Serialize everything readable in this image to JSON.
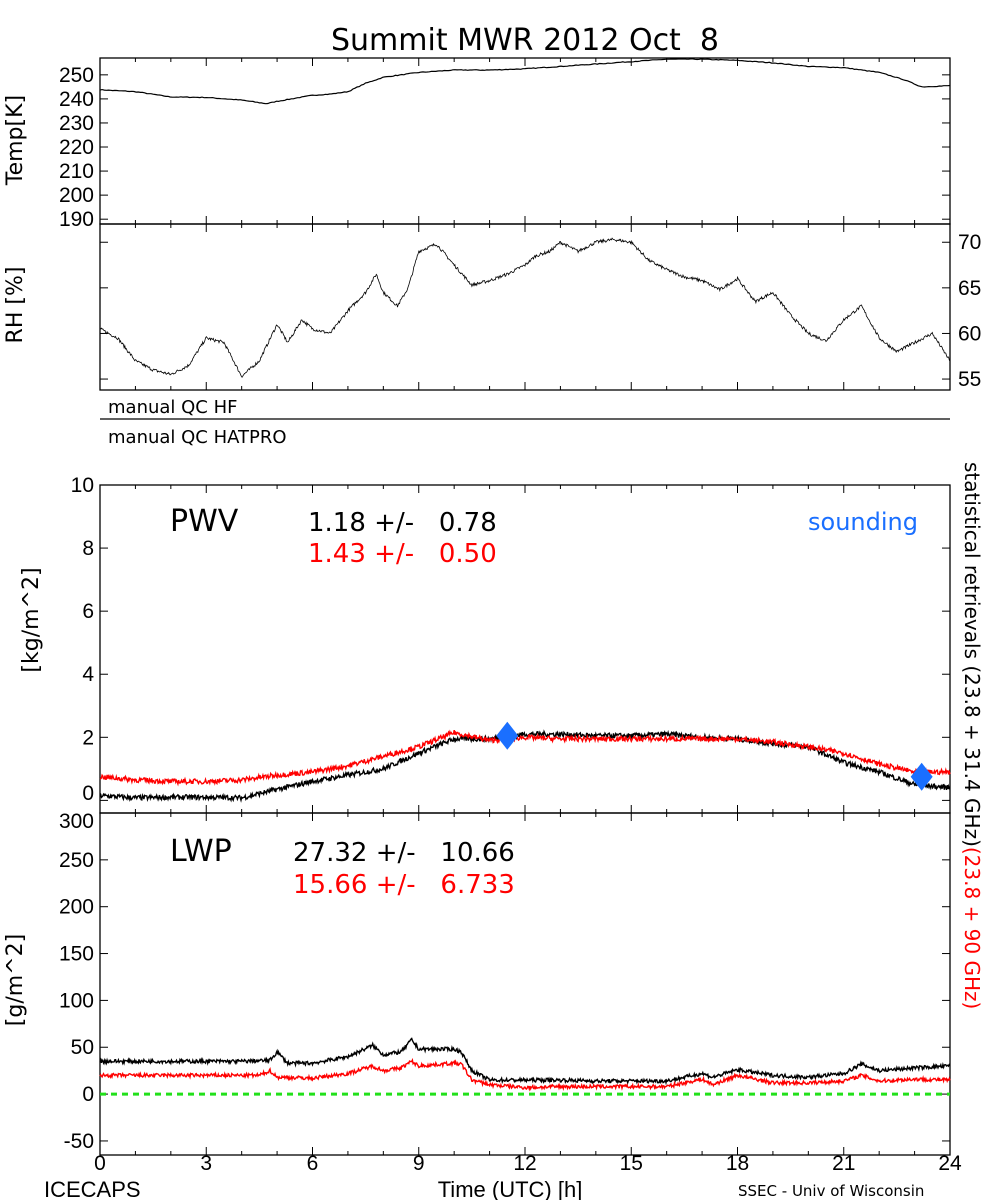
{
  "title": "Summit MWR 2012 Oct  8",
  "footer": {
    "left": "ICECAPS",
    "center": "Time (UTC) [h]",
    "right": "SSEC - Univ of Wisconsin"
  },
  "right_label": {
    "black": "statistical retrievals (23.8 + 31.4 GHz)",
    "red": "(23.8 + 90 GHz)"
  },
  "qc": {
    "hf": "manual QC HF",
    "hatpro": "manual QC HATPRO"
  },
  "colors": {
    "black_series": "#000000",
    "red_series": "#ff0000",
    "sounding": "#1a6fff",
    "zero_line": "#22e01a"
  },
  "chart_data": [
    {
      "type": "line",
      "panel": "temp",
      "ylabel": "Temp[K]",
      "ylim": [
        188,
        257
      ],
      "xlim": [
        0,
        24
      ],
      "yticks": [
        190,
        200,
        210,
        220,
        230,
        240,
        250
      ],
      "yaxis_side": "left",
      "series": [
        {
          "color": "#000000",
          "x": [
            0,
            1,
            2,
            3,
            4,
            4.7,
            5,
            6,
            6.5,
            7,
            7.5,
            8,
            9,
            10,
            11,
            12,
            13,
            14,
            15,
            16,
            17,
            18,
            19,
            20,
            21,
            22,
            22.7,
            23.2,
            24
          ],
          "values": [
            243.8,
            243,
            240.8,
            240.6,
            239.5,
            238,
            239,
            241.5,
            242,
            243,
            246.5,
            249,
            251,
            252,
            252,
            252.5,
            253.5,
            254.5,
            255.5,
            256.5,
            256.5,
            256,
            255,
            253.5,
            253,
            251,
            248,
            245,
            245.5
          ]
        }
      ]
    },
    {
      "type": "line",
      "panel": "rh",
      "ylabel": "RH [%]",
      "ylim": [
        53.8,
        72
      ],
      "xlim": [
        0,
        24
      ],
      "yticks": [
        55,
        60,
        65,
        70
      ],
      "yaxis_side": "right",
      "series": [
        {
          "color": "#000000",
          "x": [
            0,
            0.5,
            1,
            1.5,
            2,
            2.5,
            3,
            3.5,
            4,
            4.5,
            5,
            5.3,
            5.7,
            6,
            6.5,
            7,
            7.5,
            7.8,
            8,
            8.4,
            8.7,
            9,
            9.5,
            10,
            10.5,
            11,
            11.5,
            12,
            12.3,
            12.7,
            13,
            13.5,
            14,
            14.5,
            15,
            15.5,
            16,
            16.5,
            17,
            17.5,
            18,
            18.5,
            19,
            19.5,
            20,
            20.5,
            21,
            21.5,
            22,
            22.5,
            23,
            23.5,
            24
          ],
          "values": [
            60.5,
            59.5,
            57,
            56,
            55.5,
            56.5,
            59.5,
            59,
            55.3,
            57,
            61,
            59,
            61.5,
            60.5,
            60,
            62.5,
            64.5,
            66.5,
            64.5,
            63,
            65,
            69,
            69.8,
            67.5,
            65.3,
            65.8,
            66.5,
            67.5,
            68.5,
            69,
            70,
            69,
            70,
            70.3,
            70,
            68,
            67,
            66.2,
            65.8,
            64.8,
            66,
            63.5,
            64.5,
            62,
            60,
            59.2,
            61.5,
            63,
            59.5,
            58,
            59,
            60,
            57
          ]
        }
      ]
    },
    {
      "type": "line",
      "panel": "pwv",
      "panel_label": "PWV",
      "ylabel": "[kg/m^2]",
      "ylim": [
        -0.4,
        10
      ],
      "xlim": [
        0,
        24
      ],
      "yticks": [
        0,
        2,
        4,
        6,
        8,
        10
      ],
      "stats": [
        {
          "text": "1.18 +/-   0.78",
          "color": "#000000"
        },
        {
          "text": "1.43 +/-   0.50",
          "color": "#ff0000"
        }
      ],
      "legend": "sounding",
      "series": [
        {
          "color": "#000000",
          "x": [
            0,
            1,
            2,
            3,
            4,
            5,
            6,
            7,
            8,
            9,
            10,
            11,
            12,
            13,
            14,
            15,
            16,
            17,
            18,
            19,
            20,
            21,
            22,
            23,
            24
          ],
          "values": [
            0.15,
            0.08,
            0.1,
            0.1,
            0.08,
            0.35,
            0.6,
            0.8,
            1.0,
            1.5,
            1.95,
            1.95,
            2.1,
            2.1,
            2.05,
            2.05,
            2.1,
            2.0,
            1.95,
            1.8,
            1.7,
            1.2,
            0.9,
            0.5,
            0.4
          ]
        },
        {
          "color": "#ff0000",
          "x": [
            0,
            1,
            2,
            3,
            4,
            5,
            6,
            7,
            8,
            9,
            10,
            11,
            12,
            13,
            14,
            15,
            16,
            17,
            18,
            19,
            20,
            21,
            22,
            23,
            24
          ],
          "values": [
            0.75,
            0.65,
            0.6,
            0.6,
            0.65,
            0.8,
            0.9,
            1.1,
            1.4,
            1.7,
            2.15,
            1.9,
            2.0,
            1.95,
            1.95,
            1.95,
            1.95,
            1.95,
            1.95,
            1.85,
            1.7,
            1.5,
            1.15,
            0.9,
            0.9
          ]
        },
        {
          "name": "sounding",
          "type": "scatter",
          "color": "#1a6fff",
          "marker": "diamond",
          "x": [
            11.5,
            23.2
          ],
          "values": [
            2.05,
            0.75
          ]
        }
      ]
    },
    {
      "type": "line",
      "panel": "lwp",
      "panel_label": "LWP",
      "ylabel": "[g/m^2]",
      "ylim": [
        -65,
        300
      ],
      "xlim": [
        0,
        24
      ],
      "yticks": [
        -50,
        0,
        50,
        100,
        150,
        200,
        250,
        300
      ],
      "xticks": [
        0,
        3,
        6,
        9,
        12,
        15,
        18,
        21,
        24
      ],
      "xlabel": "Time (UTC) [h]",
      "stats": [
        {
          "text": "27.32 +/-   10.66",
          "color": "#000000"
        },
        {
          "text": "15.66 +/-   6.733",
          "color": "#ff0000"
        }
      ],
      "series": [
        {
          "color": "#000000",
          "x": [
            0,
            1,
            2,
            3,
            4,
            4.8,
            5,
            5.3,
            6,
            7,
            7.7,
            8,
            8.5,
            8.8,
            9,
            10,
            10.2,
            10.5,
            11,
            12,
            13,
            14,
            15,
            16,
            17,
            17.3,
            18,
            19,
            20,
            21,
            21.5,
            22,
            23,
            24
          ],
          "values": [
            35,
            35,
            35,
            35,
            35,
            36,
            45,
            33,
            33,
            40,
            52,
            42,
            45,
            58,
            48,
            48,
            45,
            25,
            15,
            15,
            15,
            14,
            14,
            14,
            22,
            18,
            26,
            20,
            18,
            22,
            32,
            25,
            28,
            30
          ]
        },
        {
          "color": "#ff0000",
          "x": [
            0,
            1,
            2,
            3,
            4,
            4.5,
            4.8,
            5,
            6,
            7,
            7.7,
            8,
            8.5,
            8.8,
            9,
            10,
            10.2,
            10.5,
            11,
            12,
            13,
            14,
            15,
            16,
            17,
            17.3,
            18,
            19,
            20,
            21,
            21.5,
            22,
            23,
            24
          ],
          "values": [
            20,
            20,
            20,
            20,
            20,
            20,
            25,
            18,
            17,
            22,
            30,
            25,
            28,
            35,
            30,
            33,
            32,
            15,
            10,
            7,
            8,
            8,
            8,
            8,
            16,
            10,
            20,
            12,
            12,
            14,
            20,
            14,
            16,
            15
          ]
        },
        {
          "type": "reference",
          "color": "#22e01a",
          "dash": true,
          "values": [
            0
          ]
        }
      ]
    }
  ]
}
